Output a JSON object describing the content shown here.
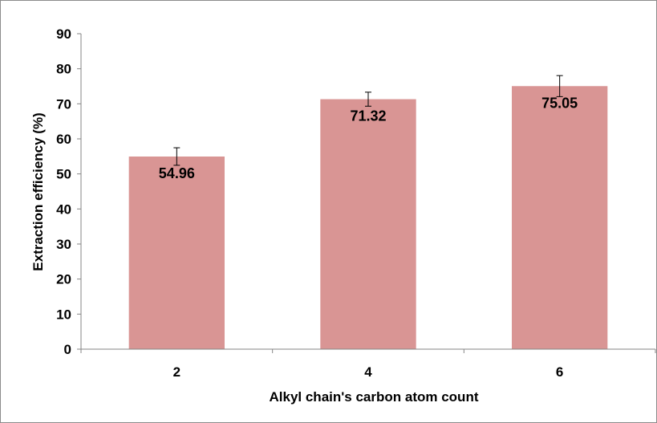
{
  "chart_data": {
    "type": "bar",
    "title": "",
    "xlabel": "Alkyl chain's carbon atom count",
    "ylabel": "Extraction efficiency (%)",
    "categories": [
      "2",
      "4",
      "6"
    ],
    "values": [
      54.96,
      71.32,
      75.05
    ],
    "data_labels": [
      "54.96",
      "71.32",
      "75.05"
    ],
    "error": [
      2.5,
      2.0,
      3.0
    ],
    "ylim": [
      0,
      90
    ],
    "yticks": [
      "0",
      "10",
      "20",
      "30",
      "40",
      "50",
      "60",
      "70",
      "80",
      "90"
    ],
    "grid": false,
    "legend": "none",
    "colors": {
      "bar": "#d99594",
      "error_bar": "#000000",
      "axis": "#868686",
      "frame": "#8c8c8c"
    }
  }
}
